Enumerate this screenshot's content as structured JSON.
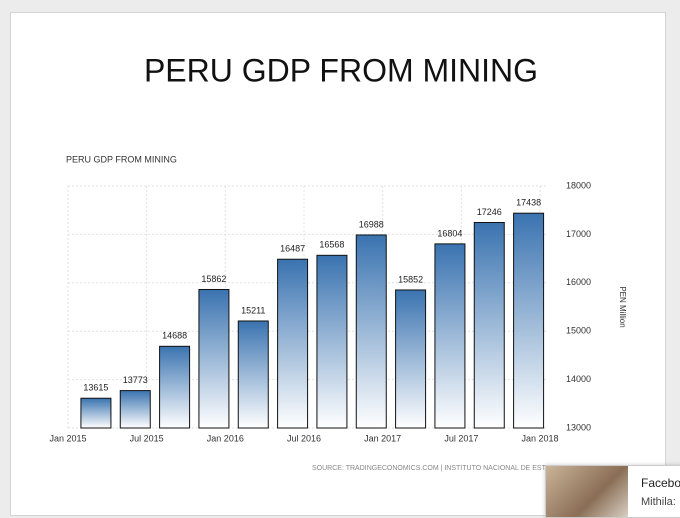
{
  "slide_title": "PERU GDP FROM MINING",
  "chart_data": {
    "type": "bar",
    "title": "PERU GDP FROM MINING",
    "categories": [
      null,
      null,
      null,
      null,
      null,
      null,
      null,
      null,
      null,
      null,
      null,
      null
    ],
    "values": [
      13615,
      13773,
      14688,
      15862,
      15211,
      16487,
      16568,
      16988,
      15852,
      16804,
      17246,
      17438
    ],
    "x_labels": [
      "Jan 2015",
      "Jul 2015",
      "Jan 2016",
      "Jul 2016",
      "Jan 2017",
      "Jul 2017",
      "Jan 2018"
    ],
    "color": "#3a73b0",
    "ylim": [
      13000,
      18000
    ],
    "yticks": [
      13000,
      14000,
      15000,
      16000,
      17000,
      18000
    ],
    "ylabel": "PEN Million",
    "grid": true,
    "source": "SOURCE: TRADINGECONOMICS.COM | INSTITUTO NACIONAL DE ESTADISTICA"
  },
  "popup": {
    "title": "Facebo",
    "text": "Mithila:"
  }
}
